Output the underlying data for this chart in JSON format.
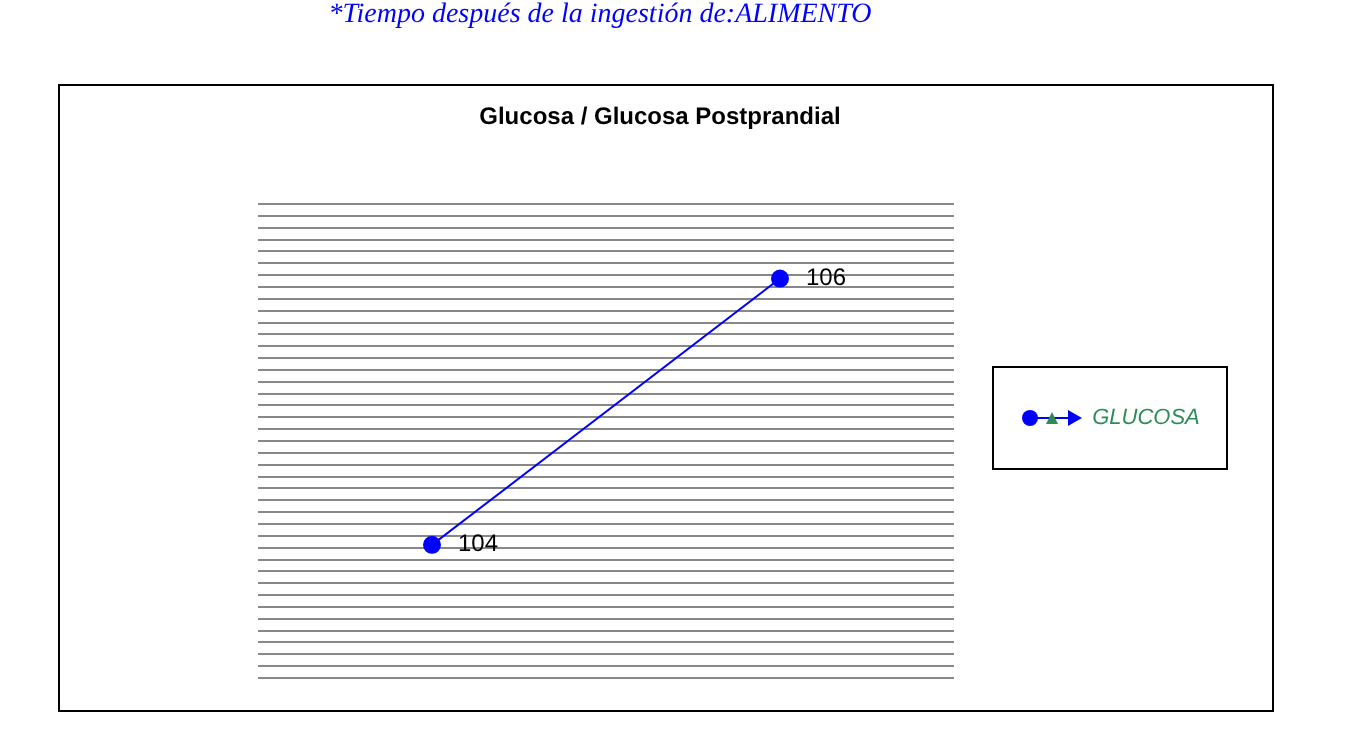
{
  "chart_data": {
    "type": "line",
    "title": "Glucosa / Glucosa Postprandial",
    "annotations": [
      "*Tiempo después de la ingestión de:ALIMENTO"
    ],
    "categories": [
      null,
      null
    ],
    "series": [
      {
        "name": "GLUCOSA",
        "color": "#0000ff",
        "values": [
          104,
          106
        ]
      }
    ],
    "relative": false,
    "data_labels": true,
    "grid": "y",
    "legend": "right",
    "tick_labels": false,
    "marker": "circle",
    "line_style": "solid"
  }
}
